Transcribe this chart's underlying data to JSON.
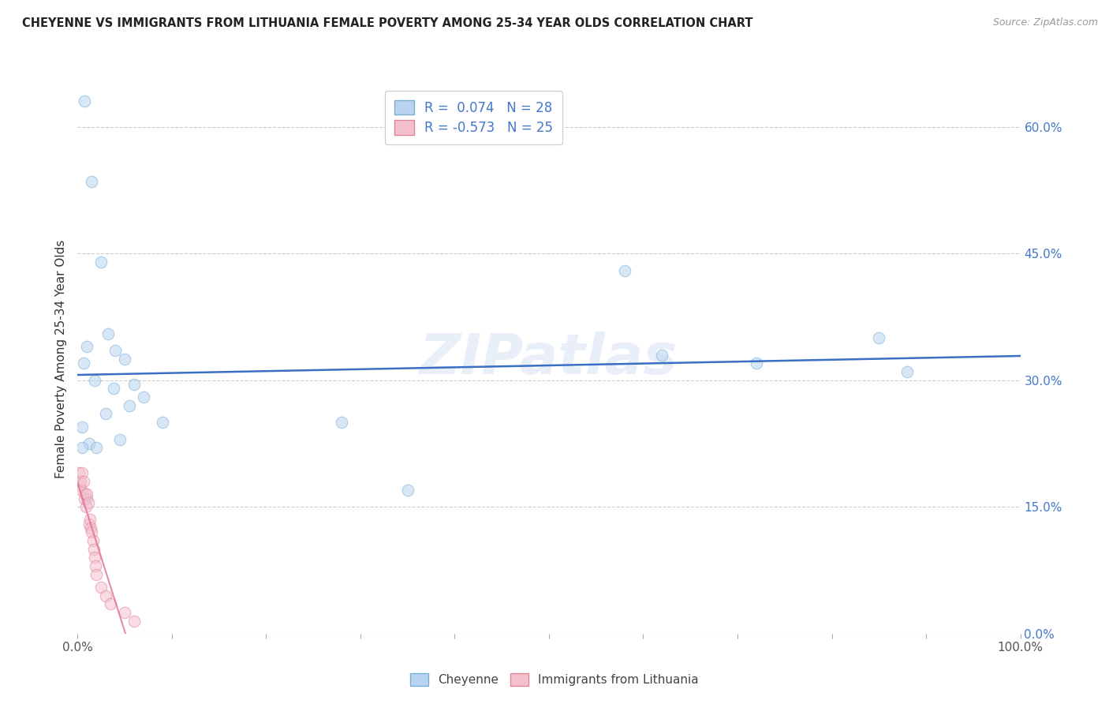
{
  "title": "CHEYENNE VS IMMIGRANTS FROM LITHUANIA FEMALE POVERTY AMONG 25-34 YEAR OLDS CORRELATION CHART",
  "source": "Source: ZipAtlas.com",
  "ylabel": "Female Poverty Among 25-34 Year Olds",
  "xlim": [
    0,
    1.0
  ],
  "ylim": [
    0,
    0.65
  ],
  "yticks": [
    0.0,
    0.15,
    0.3,
    0.45,
    0.6
  ],
  "xticks": [
    0.0,
    0.1,
    0.2,
    0.3,
    0.4,
    0.5,
    0.6,
    0.7,
    0.8,
    0.9,
    1.0
  ],
  "cheyenne_R": 0.074,
  "cheyenne_N": 28,
  "lithuania_R": -0.573,
  "lithuania_N": 25,
  "cheyenne_color": "#b8d4f0",
  "cheyenne_edge": "#7aadd4",
  "lithuania_color": "#f5c0ce",
  "lithuania_edge": "#e0849a",
  "trend_blue": "#3a6fc4",
  "trend_pink": "#e07090",
  "watermark": "ZIPatlas",
  "cheyenne_x": [
    0.007,
    0.015,
    0.025,
    0.032,
    0.04,
    0.05,
    0.06,
    0.07,
    0.005,
    0.012,
    0.02,
    0.03,
    0.006,
    0.01,
    0.28,
    0.58,
    0.62,
    0.72,
    0.85,
    0.88,
    0.35,
    0.005,
    0.01,
    0.09,
    0.045,
    0.055,
    0.018,
    0.038
  ],
  "cheyenne_y": [
    0.63,
    0.535,
    0.44,
    0.355,
    0.335,
    0.325,
    0.295,
    0.28,
    0.245,
    0.225,
    0.22,
    0.26,
    0.32,
    0.34,
    0.25,
    0.43,
    0.33,
    0.32,
    0.35,
    0.31,
    0.17,
    0.22,
    0.16,
    0.25,
    0.23,
    0.27,
    0.3,
    0.29
  ],
  "lithuania_x": [
    0.001,
    0.002,
    0.003,
    0.004,
    0.005,
    0.006,
    0.007,
    0.008,
    0.009,
    0.01,
    0.011,
    0.012,
    0.013,
    0.014,
    0.015,
    0.016,
    0.017,
    0.018,
    0.019,
    0.02,
    0.025,
    0.03,
    0.035,
    0.05,
    0.06
  ],
  "lithuania_y": [
    0.19,
    0.175,
    0.18,
    0.17,
    0.19,
    0.18,
    0.16,
    0.165,
    0.15,
    0.165,
    0.155,
    0.13,
    0.135,
    0.125,
    0.12,
    0.11,
    0.1,
    0.09,
    0.08,
    0.07,
    0.055,
    0.045,
    0.035,
    0.025,
    0.015
  ],
  "background_color": "#ffffff",
  "grid_color": "#cccccc",
  "title_color": "#222222",
  "axis_tick_color": "#4477cc",
  "axis_label_color": "#333333",
  "marker_size": 110,
  "marker_alpha": 0.55
}
